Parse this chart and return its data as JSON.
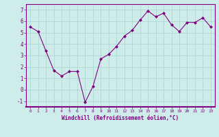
{
  "x": [
    0,
    1,
    2,
    3,
    4,
    5,
    6,
    7,
    8,
    9,
    10,
    11,
    12,
    13,
    14,
    15,
    16,
    17,
    18,
    19,
    20,
    21,
    22,
    23
  ],
  "y": [
    5.5,
    5.1,
    3.4,
    1.7,
    1.2,
    1.6,
    1.6,
    -1.1,
    0.3,
    2.7,
    3.1,
    3.8,
    4.7,
    5.2,
    6.1,
    6.9,
    6.4,
    6.7,
    5.7,
    5.1,
    5.9,
    5.9,
    6.3,
    5.5
  ],
  "line_color": "#800080",
  "marker": "D",
  "marker_size": 2.0,
  "bg_color": "#ceecea",
  "grid_color": "#aed8d5",
  "xlabel": "Windchill (Refroidissement éolien,°C)",
  "xlim": [
    -0.5,
    23.5
  ],
  "ylim": [
    -1.5,
    7.5
  ],
  "yticks": [
    -1,
    0,
    1,
    2,
    3,
    4,
    5,
    6,
    7
  ],
  "xticks": [
    0,
    1,
    2,
    3,
    4,
    5,
    6,
    7,
    8,
    9,
    10,
    11,
    12,
    13,
    14,
    15,
    16,
    17,
    18,
    19,
    20,
    21,
    22,
    23
  ],
  "tick_color": "#800080",
  "label_color": "#800080",
  "spine_color": "#800080",
  "xlabel_fontsize": 5.5,
  "xtick_fontsize": 4.5,
  "ytick_fontsize": 5.5
}
